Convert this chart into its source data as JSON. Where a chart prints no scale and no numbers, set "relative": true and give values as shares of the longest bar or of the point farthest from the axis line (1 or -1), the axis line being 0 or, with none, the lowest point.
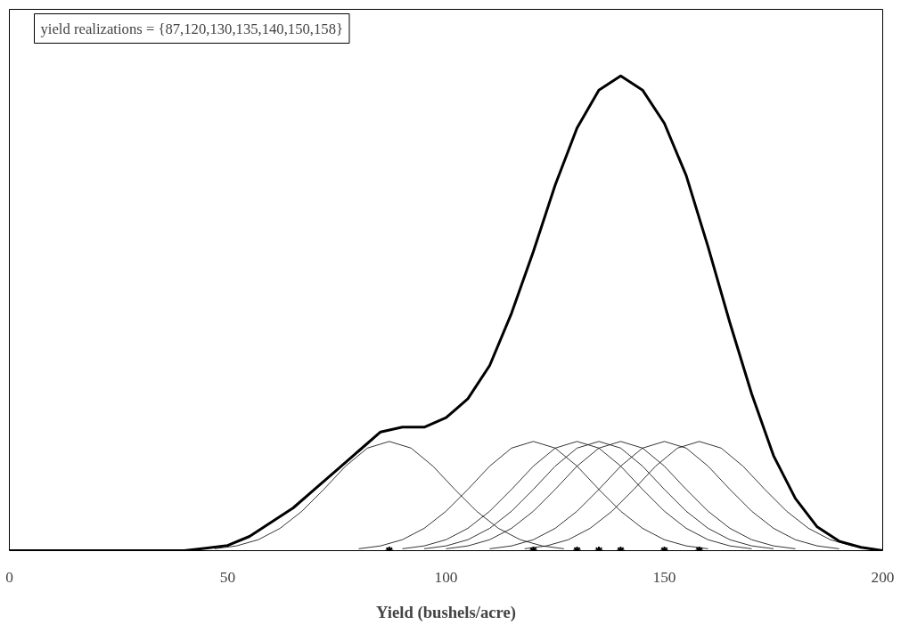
{
  "chart_data": {
    "type": "line",
    "relative": true,
    "xlabel": "Yield (bushels/acre)",
    "annotations": [
      "yield realizations = {87,120,130,135,140,150,158}"
    ],
    "xlim": [
      0,
      200
    ],
    "xticks": [
      0,
      50,
      100,
      150,
      200
    ],
    "grid": false,
    "marker": "none",
    "line_style": "solid",
    "series": [
      {
        "color": "#000000",
        "x": [
          0,
          5,
          10,
          15,
          20,
          25,
          30,
          35,
          40,
          45,
          50,
          55,
          60,
          65,
          70,
          75,
          80,
          85,
          90,
          95,
          100,
          105,
          110,
          115,
          120,
          125,
          130,
          135,
          140,
          145,
          150,
          155,
          160,
          165,
          170,
          175,
          180,
          185,
          190,
          195,
          200
        ],
        "values": [
          0,
          0,
          0,
          0,
          0,
          0,
          0,
          0,
          0,
          0.005,
          0.011,
          0.03,
          0.06,
          0.09,
          0.13,
          0.17,
          0.21,
          0.25,
          0.26,
          0.26,
          0.28,
          0.32,
          0.39,
          0.5,
          0.63,
          0.77,
          0.89,
          0.97,
          1.0,
          0.97,
          0.9,
          0.79,
          0.64,
          0.48,
          0.33,
          0.2,
          0.11,
          0.05,
          0.02,
          0.007,
          0
        ]
      },
      {
        "color": "#000000",
        "x": [
          47,
          52,
          57,
          62,
          67,
          72,
          77,
          82,
          87,
          92,
          97,
          102,
          107,
          112,
          117,
          122,
          127
        ],
        "values": [
          0.004,
          0.01,
          0.023,
          0.047,
          0.083,
          0.129,
          0.178,
          0.216,
          0.23,
          0.216,
          0.178,
          0.129,
          0.083,
          0.047,
          0.023,
          0.01,
          0.004
        ]
      },
      {
        "color": "#000000",
        "x": [
          80,
          85,
          90,
          95,
          100,
          105,
          110,
          115,
          120,
          125,
          130,
          135,
          140,
          145,
          150,
          155,
          160
        ],
        "values": [
          0.004,
          0.01,
          0.023,
          0.047,
          0.083,
          0.129,
          0.178,
          0.216,
          0.23,
          0.216,
          0.178,
          0.129,
          0.083,
          0.047,
          0.023,
          0.01,
          0.004
        ]
      },
      {
        "color": "#000000",
        "x": [
          90,
          95,
          100,
          105,
          110,
          115,
          120,
          125,
          130,
          135,
          140,
          145,
          150,
          155,
          160,
          165,
          170
        ],
        "values": [
          0.004,
          0.01,
          0.023,
          0.047,
          0.083,
          0.129,
          0.178,
          0.216,
          0.23,
          0.216,
          0.178,
          0.129,
          0.083,
          0.047,
          0.023,
          0.01,
          0.004
        ]
      },
      {
        "color": "#000000",
        "x": [
          95,
          100,
          105,
          110,
          115,
          120,
          125,
          130,
          135,
          140,
          145,
          150,
          155,
          160,
          165,
          170,
          175
        ],
        "values": [
          0.004,
          0.01,
          0.023,
          0.047,
          0.083,
          0.129,
          0.178,
          0.216,
          0.23,
          0.216,
          0.178,
          0.129,
          0.083,
          0.047,
          0.023,
          0.01,
          0.004
        ]
      },
      {
        "color": "#000000",
        "x": [
          100,
          105,
          110,
          115,
          120,
          125,
          130,
          135,
          140,
          145,
          150,
          155,
          160,
          165,
          170,
          175,
          180
        ],
        "values": [
          0.004,
          0.01,
          0.023,
          0.047,
          0.083,
          0.129,
          0.178,
          0.216,
          0.23,
          0.216,
          0.178,
          0.129,
          0.083,
          0.047,
          0.023,
          0.01,
          0.004
        ]
      },
      {
        "color": "#000000",
        "x": [
          110,
          115,
          120,
          125,
          130,
          135,
          140,
          145,
          150,
          155,
          160,
          165,
          170,
          175,
          180,
          185,
          190
        ],
        "values": [
          0.004,
          0.01,
          0.023,
          0.047,
          0.083,
          0.129,
          0.178,
          0.216,
          0.23,
          0.216,
          0.178,
          0.129,
          0.083,
          0.047,
          0.023,
          0.01,
          0.004
        ]
      },
      {
        "color": "#000000",
        "x": [
          118,
          123,
          128,
          133,
          138,
          143,
          148,
          153,
          158,
          163,
          168,
          173,
          178,
          183,
          188,
          193,
          198
        ],
        "values": [
          0.004,
          0.01,
          0.023,
          0.047,
          0.083,
          0.129,
          0.178,
          0.216,
          0.23,
          0.216,
          0.178,
          0.129,
          0.083,
          0.047,
          0.023,
          0.01,
          0.004
        ]
      },
      {
        "type": "scatter",
        "marker": "cross",
        "color": "#000000",
        "x": [
          87,
          120,
          130,
          135,
          140,
          150,
          158
        ],
        "values": [
          0,
          0,
          0,
          0,
          0,
          0,
          0
        ]
      }
    ]
  }
}
